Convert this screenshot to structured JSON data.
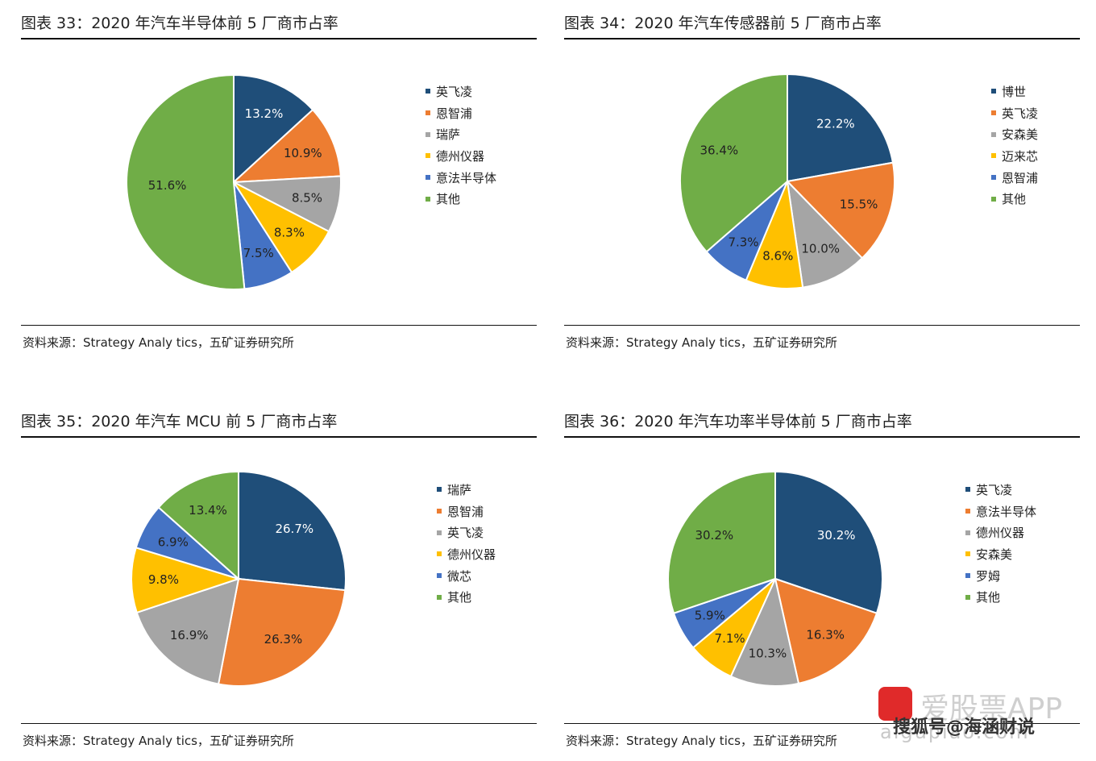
{
  "chart_data": [
    {
      "type": "pie",
      "title": "图表 33：2020 年汽车半导体前 5 厂商市占率",
      "source": "资料来源：Strategy Analy tics，五矿证券研究所",
      "categories": [
        "英飞凌",
        "恩智浦",
        "瑞萨",
        "德州仪器",
        "意法半导体",
        "其他"
      ],
      "values": [
        13.2,
        10.9,
        8.5,
        8.3,
        7.5,
        51.6
      ],
      "labels": [
        "13.2%",
        "10.9%",
        "8.5%",
        "8.3%",
        "7.5%",
        "51.6%"
      ],
      "colors": [
        "#1f4e79",
        "#ed7d31",
        "#a5a5a5",
        "#ffc000",
        "#4472c4",
        "#70ad47"
      ],
      "legend_position": "right"
    },
    {
      "type": "pie",
      "title": "图表 34：2020 年汽车传感器前 5 厂商市占率",
      "source": "资料来源：Strategy Analy tics，五矿证券研究所",
      "categories": [
        "博世",
        "英飞凌",
        "安森美",
        "迈来芯",
        "恩智浦",
        "其他"
      ],
      "values": [
        22.2,
        15.5,
        10.0,
        8.6,
        7.3,
        36.4
      ],
      "labels": [
        "22.2%",
        "15.5%",
        "10.0%",
        "8.6%",
        "7.3%",
        "36.4%"
      ],
      "colors": [
        "#1f4e79",
        "#ed7d31",
        "#a5a5a5",
        "#ffc000",
        "#4472c4",
        "#70ad47"
      ],
      "legend_position": "right"
    },
    {
      "type": "pie",
      "title": "图表 35：2020 年汽车 MCU 前 5 厂商市占率",
      "source": "资料来源：Strategy Analy tics，五矿证券研究所",
      "categories": [
        "瑞萨",
        "恩智浦",
        "英飞凌",
        "德州仪器",
        "微芯",
        "其他"
      ],
      "values": [
        26.7,
        26.3,
        16.9,
        9.8,
        6.9,
        13.4
      ],
      "labels": [
        "26.7%",
        "26.3%",
        "16.9%",
        "9.8%",
        "6.9%",
        "13.4%"
      ],
      "colors": [
        "#1f4e79",
        "#ed7d31",
        "#a5a5a5",
        "#ffc000",
        "#4472c4",
        "#70ad47"
      ],
      "legend_position": "right"
    },
    {
      "type": "pie",
      "title": "图表 36：2020 年汽车功率半导体前 5 厂商市占率",
      "source": "资料来源：Strategy Analy tics，五矿证券研究所",
      "categories": [
        "英飞凌",
        "意法半导体",
        "德州仪器",
        "安森美",
        "罗姆",
        "其他"
      ],
      "values": [
        30.2,
        16.3,
        10.3,
        7.1,
        5.9,
        30.2
      ],
      "labels": [
        "30.2%",
        "16.3%",
        "10.3%",
        "7.1%",
        "5.9%",
        "30.2%"
      ],
      "colors": [
        "#1f4e79",
        "#ed7d31",
        "#a5a5a5",
        "#ffc000",
        "#4472c4",
        "#70ad47"
      ],
      "legend_position": "right"
    }
  ],
  "watermark": {
    "app": "爱股票APP",
    "user": "搜狐号@海涵财说",
    "site": "aigupiao.com"
  }
}
